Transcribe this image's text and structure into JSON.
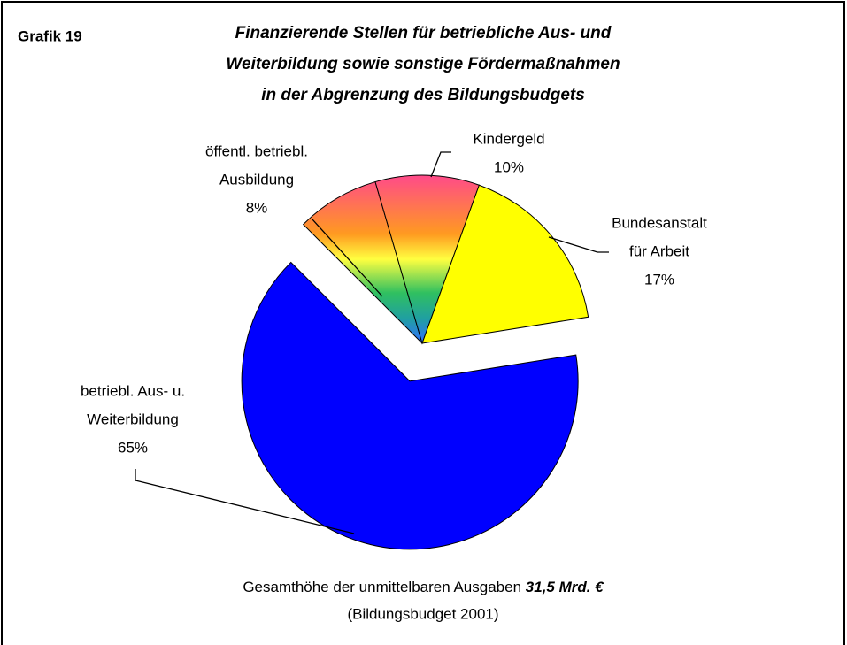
{
  "chart_data": {
    "type": "pie",
    "label": "Grafik 19",
    "title": [
      "Finanzierende Stellen für betriebliche Aus- und",
      "Weiterbildung sowie sonstige Fördermaßnahmen",
      "in der Abgrenzung des Bildungsbudgets"
    ],
    "categories": [
      [
        "öffentl. betriebl.",
        "Ausbildung"
      ],
      [
        "Kindergeld"
      ],
      [
        "Bundesanstalt",
        "für Arbeit"
      ],
      [
        "betriebl. Aus- u.",
        "Weiterbildung"
      ]
    ],
    "values": [
      8,
      10,
      17,
      65
    ],
    "value_labels": [
      "8%",
      "10%",
      "17%",
      "65%"
    ],
    "colors": [
      "#ff4a8a",
      "#ff4a8a",
      "#ffff00",
      "#0000ff"
    ],
    "footer": {
      "text": "Gesamthöhe der unmittelbaren Ausgaben",
      "emphasis": "31,5 Mrd.  €",
      "note": "(Bildungsbudget 2001)"
    }
  }
}
